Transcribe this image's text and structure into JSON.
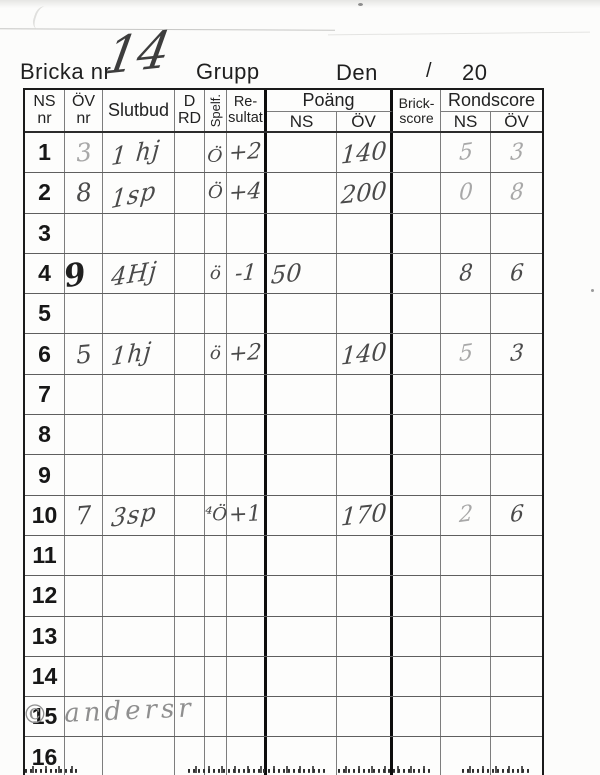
{
  "title": {
    "bricka_label": "Bricka nr",
    "bricka_value": "14",
    "grupp_label": "Grupp",
    "den_label": "Den",
    "slash": "/",
    "year": "20"
  },
  "header": {
    "ns_nr": [
      "NS",
      "nr"
    ],
    "ov_nr": [
      "ÖV",
      "nr"
    ],
    "slutbud": "Slutbud",
    "d_rd": [
      "D",
      "RD"
    ],
    "spelf": "Spelf.",
    "resultat": [
      "Re-",
      "sultat"
    ],
    "poang": "Poäng",
    "brickscore": [
      "Brick-",
      "score"
    ],
    "rondscore": "Rondscore",
    "sub_ns": "NS",
    "sub_ov": "ÖV"
  },
  "watermark": "© andersr",
  "colors": {
    "pencil_dark": "#1f1f1f",
    "pencil_mid": "#4a4a4a",
    "pencil_light": "#a8a8a8",
    "grid_line": "#7d7d7d",
    "heavy_line": "#0d0d0d"
  },
  "rows": [
    {
      "nr": "1",
      "ov_nr": {
        "v": "3",
        "s": "light"
      },
      "slutbud": {
        "v": "1 hj",
        "s": "mid"
      },
      "spelf": {
        "v": "Ö",
        "s": "mid"
      },
      "resultat": {
        "v": "+2",
        "s": "mid"
      },
      "poang_ov": {
        "v": "140",
        "s": "mid"
      },
      "rond_ns": {
        "v": "5",
        "s": "light"
      },
      "rond_ov": {
        "v": "3",
        "s": "light"
      }
    },
    {
      "nr": "2",
      "ov_nr": {
        "v": "8",
        "s": "mid"
      },
      "slutbud": {
        "v": "1sp",
        "s": "mid"
      },
      "spelf": {
        "v": "Ö",
        "s": "mid"
      },
      "resultat": {
        "v": "+4",
        "s": "mid"
      },
      "poang_ov": {
        "v": "200",
        "s": "mid"
      },
      "rond_ns": {
        "v": "0",
        "s": "light"
      },
      "rond_ov": {
        "v": "8",
        "s": "light"
      }
    },
    {
      "nr": "3"
    },
    {
      "nr": "4",
      "ov_nr": {
        "v": "9",
        "s": "dark"
      },
      "slutbud": {
        "v": "4Hj",
        "s": "mid"
      },
      "spelf": {
        "v": "ö",
        "s": "mid"
      },
      "resultat": {
        "v": "-1",
        "s": "mid"
      },
      "poang_ns": {
        "v": "50",
        "s": "mid"
      },
      "rond_ns": {
        "v": "8",
        "s": "mid"
      },
      "rond_ov": {
        "v": "6",
        "s": "mid"
      }
    },
    {
      "nr": "5"
    },
    {
      "nr": "6",
      "ov_nr": {
        "v": "5",
        "s": "mid"
      },
      "slutbud": {
        "v": "1hj",
        "s": "mid"
      },
      "spelf": {
        "v": "ö",
        "s": "mid"
      },
      "resultat": {
        "v": "+2",
        "s": "mid"
      },
      "poang_ov": {
        "v": "140",
        "s": "mid"
      },
      "rond_ns": {
        "v": "5",
        "s": "light"
      },
      "rond_ov": {
        "v": "3",
        "s": "mid"
      }
    },
    {
      "nr": "7"
    },
    {
      "nr": "8"
    },
    {
      "nr": "9"
    },
    {
      "nr": "10",
      "ov_nr": {
        "v": "7",
        "s": "mid"
      },
      "slutbud": {
        "v": "3sp",
        "s": "mid"
      },
      "spelf": {
        "v": "⁴Ö",
        "s": "mid"
      },
      "resultat": {
        "v": "+1",
        "s": "mid"
      },
      "poang_ov": {
        "v": "170",
        "s": "mid"
      },
      "rond_ns": {
        "v": "2",
        "s": "light"
      },
      "rond_ov": {
        "v": "6",
        "s": "mid"
      }
    },
    {
      "nr": "11"
    },
    {
      "nr": "12"
    },
    {
      "nr": "13"
    },
    {
      "nr": "14"
    },
    {
      "nr": "15"
    },
    {
      "nr": "16"
    }
  ]
}
